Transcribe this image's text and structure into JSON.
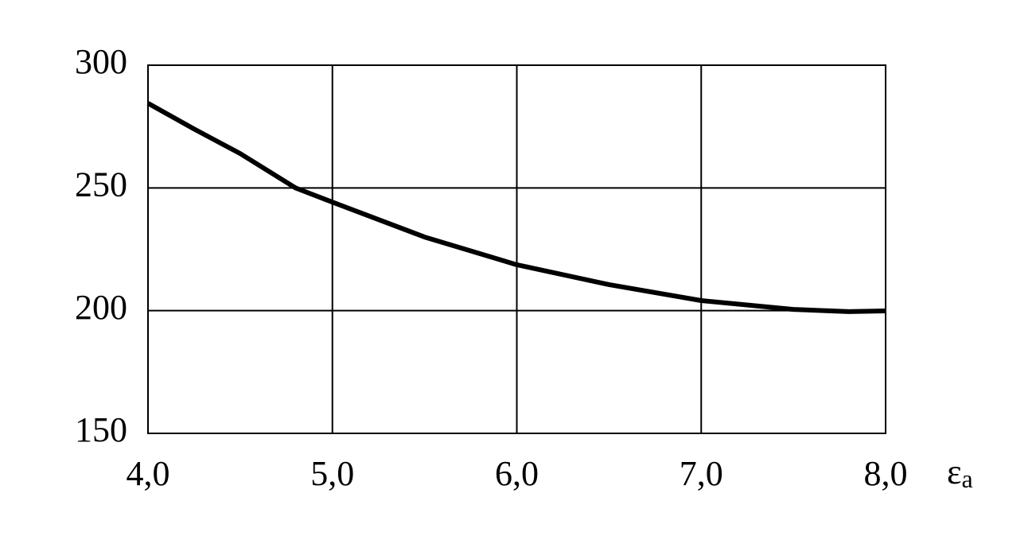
{
  "chart_data": {
    "type": "line",
    "x": [
      4.0,
      4.25,
      4.5,
      4.8,
      5.0,
      5.5,
      6.0,
      6.5,
      7.0,
      7.5,
      7.8,
      8.0
    ],
    "series": [
      {
        "color": "#000000",
        "values": [
          284.5,
          274,
          264,
          250,
          244.2,
          230,
          218.7,
          210.6,
          204.1,
          200.5,
          199.6,
          199.9
        ]
      }
    ],
    "xlim": [
      4,
      8
    ],
    "ylim": [
      150,
      300
    ],
    "xticks": [
      {
        "value": 4,
        "label": "4,0"
      },
      {
        "value": 5,
        "label": "5,0"
      },
      {
        "value": 6,
        "label": "6,0"
      },
      {
        "value": 7,
        "label": "7,0"
      },
      {
        "value": 8,
        "label": "8,0"
      }
    ],
    "yticks": [
      150,
      200,
      250,
      300
    ],
    "x_label": {
      "symbol": "ε",
      "subscript": "a"
    },
    "grid": true
  }
}
